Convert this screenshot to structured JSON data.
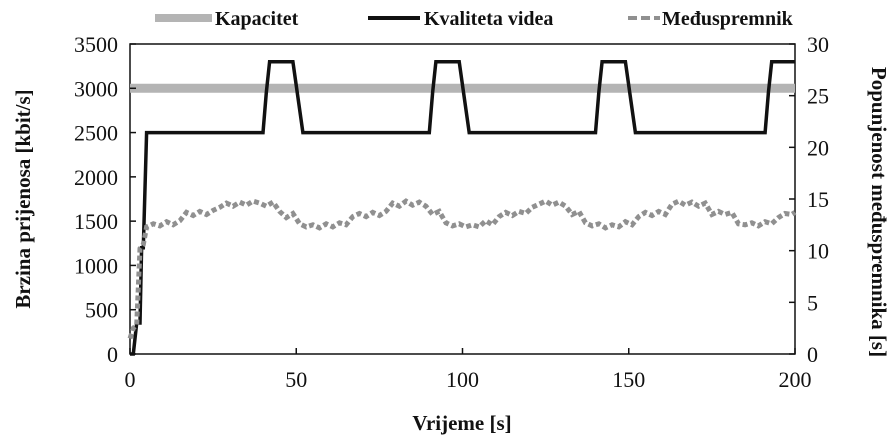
{
  "chart_data": {
    "type": "line",
    "xlabel": "Vrijeme [s]",
    "ylabel": "Brzina prijenosa [kbit/s]",
    "y2label": "Popunjenost međuspremnika [s]",
    "xlim": [
      0,
      200
    ],
    "ylim": [
      0,
      3500
    ],
    "y2lim": [
      0,
      30
    ],
    "x_ticks": [
      "0",
      "50",
      "100",
      "150",
      "200"
    ],
    "y_ticks": [
      "0",
      "500",
      "1000",
      "1500",
      "2000",
      "2500",
      "3000",
      "3500"
    ],
    "y2_ticks": [
      "0",
      "5",
      "10",
      "15",
      "20",
      "25",
      "30"
    ],
    "legend_position": "top",
    "grid": false,
    "series": [
      {
        "name": "Kapacitet",
        "axis": "left",
        "style": "thick-gray",
        "color": "#b4b4b4",
        "x": [
          0,
          200
        ],
        "y": [
          3000,
          3000
        ]
      },
      {
        "name": "Kvaliteta videa",
        "axis": "left",
        "style": "solid-black",
        "color": "#111111",
        "x": [
          0,
          1,
          2,
          3,
          3.5,
          4,
          5,
          6,
          40,
          41,
          42,
          48,
          49,
          52,
          53,
          90,
          91,
          92,
          98,
          99,
          102,
          103,
          140,
          141,
          142,
          148,
          149,
          152,
          153,
          191,
          192,
          193,
          200
        ],
        "y": [
          0,
          0,
          350,
          350,
          1200,
          1200,
          2500,
          2500,
          2500,
          2950,
          3300,
          3300,
          3300,
          2500,
          2500,
          2500,
          2950,
          3300,
          3300,
          3300,
          2500,
          2500,
          2500,
          2950,
          3300,
          3300,
          3300,
          2500,
          2500,
          2500,
          2950,
          3300,
          3300
        ]
      },
      {
        "name": "Međuspremnik",
        "axis": "right",
        "style": "dashed-gray",
        "color": "#909090",
        "x": [
          0,
          1,
          2,
          3,
          4,
          5,
          7,
          9,
          11,
          13,
          15,
          17,
          19,
          21,
          23,
          25,
          27,
          29,
          31,
          33,
          35,
          37,
          39,
          41,
          43,
          45,
          47,
          49,
          51,
          53,
          55,
          57,
          59,
          61,
          63,
          65,
          67,
          69,
          71,
          73,
          75,
          77,
          79,
          81,
          83,
          85,
          87,
          89,
          91,
          93,
          95,
          97,
          99,
          101,
          103,
          105,
          107,
          109,
          111,
          113,
          115,
          117,
          119,
          121,
          123,
          125,
          127,
          129,
          131,
          133,
          135,
          137,
          139,
          141,
          143,
          145,
          147,
          149,
          151,
          153,
          155,
          157,
          159,
          161,
          163,
          165,
          167,
          169,
          171,
          173,
          175,
          177,
          179,
          181,
          183,
          185,
          187,
          189,
          191,
          193,
          195,
          197,
          199,
          200
        ],
        "y": [
          1.5,
          2.5,
          2.8,
          10.2,
          10.6,
          12.3,
          12.6,
          12.4,
          12.8,
          12.5,
          12.9,
          13.7,
          13.4,
          13.8,
          13.5,
          13.9,
          14.2,
          14.6,
          14.3,
          14.7,
          14.4,
          14.8,
          14.6,
          14.3,
          14.7,
          13.8,
          13.2,
          13.6,
          12.6,
          12.3,
          12.5,
          12.2,
          12.6,
          12.3,
          12.7,
          12.5,
          13.3,
          13.6,
          13.3,
          13.7,
          13.4,
          13.8,
          14.6,
          14.3,
          14.8,
          14.4,
          14.7,
          14.3,
          13.5,
          13.8,
          12.7,
          12.4,
          12.6,
          12.3,
          12.5,
          12.3,
          12.9,
          12.5,
          13.3,
          13.7,
          13.4,
          13.8,
          13.6,
          14.2,
          14.5,
          14.8,
          14.4,
          14.7,
          14.3,
          13.5,
          13.8,
          12.7,
          12.4,
          12.6,
          12.2,
          12.5,
          12.3,
          12.8,
          12.5,
          13.3,
          13.7,
          13.4,
          13.8,
          13.5,
          14.5,
          14.8,
          14.4,
          14.7,
          14.3,
          14.6,
          13.5,
          13.8,
          13.5,
          13.7,
          12.6,
          12.5,
          12.7,
          12.4,
          12.8,
          12.6,
          13.2,
          13.6,
          13.5,
          13.7
        ]
      }
    ]
  }
}
